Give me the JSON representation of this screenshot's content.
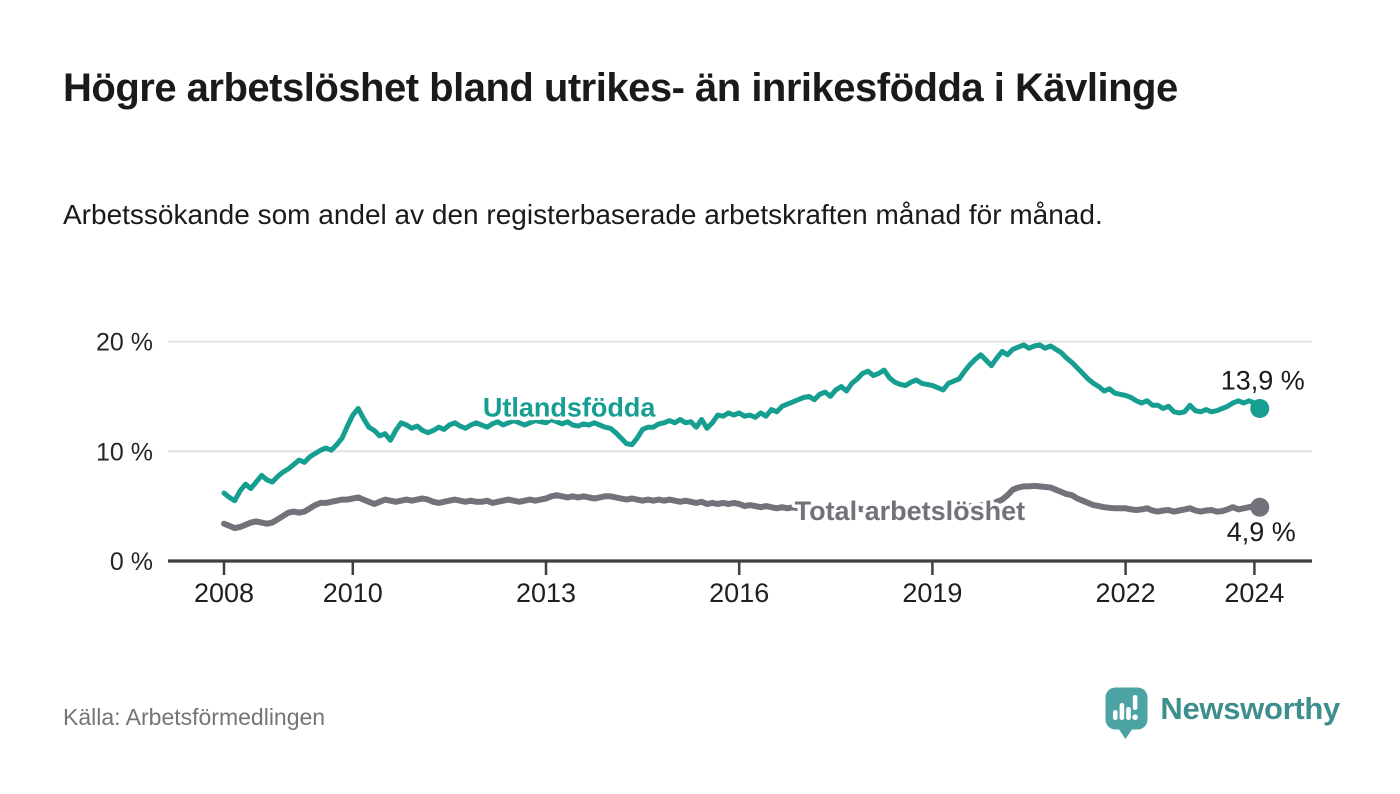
{
  "header": {
    "title": "Högre arbetslöshet bland utrikes- än inrikesfödda i Kävlinge",
    "subtitle": "Arbetssökande som andel av den registerbaserade arbetskraften månad för månad."
  },
  "colors": {
    "accent_teal": "#169e90",
    "accent_gray": "#75757c",
    "grid": "#e3e3e3",
    "axis": "#3f3f3f",
    "text": "#1a1a1a",
    "muted": "#757575",
    "brand": "#3e8e8e",
    "brand_icon": "#4ba3a3"
  },
  "chart_data": {
    "type": "line",
    "title": "",
    "xlabel": "",
    "ylabel": "",
    "x_range": {
      "start": "2008-01",
      "end": "2024-02",
      "step": "month"
    },
    "ylim": [
      0,
      21
    ],
    "grid": "horizontal",
    "y_ticks": [
      {
        "value": 0,
        "label": "0 %"
      },
      {
        "value": 10,
        "label": "10 %"
      },
      {
        "value": 20,
        "label": "20 %"
      }
    ],
    "x_ticks": [
      {
        "value": 2008,
        "label": "2008"
      },
      {
        "value": 2010,
        "label": "2010"
      },
      {
        "value": 2013,
        "label": "2013"
      },
      {
        "value": 2016,
        "label": "2016"
      },
      {
        "value": 2019,
        "label": "2019"
      },
      {
        "value": 2022,
        "label": "2022"
      },
      {
        "value": 2024,
        "label": "2024"
      }
    ],
    "series": [
      {
        "name": "Utlandsfödda",
        "color": "#169e90",
        "end_label": "13,9 %",
        "label": {
          "text": "Utlandsfödda",
          "x": 2013.36,
          "y": 14.0
        },
        "values": [
          6.2,
          5.8,
          5.5,
          6.4,
          7.0,
          6.6,
          7.2,
          7.8,
          7.4,
          7.2,
          7.7,
          8.1,
          8.4,
          8.8,
          9.2,
          9.0,
          9.5,
          9.8,
          10.1,
          10.3,
          10.1,
          10.6,
          11.2,
          12.3,
          13.3,
          13.9,
          13.0,
          12.2,
          11.9,
          11.4,
          11.6,
          11.0,
          11.9,
          12.6,
          12.4,
          12.1,
          12.3,
          11.9,
          11.7,
          11.9,
          12.2,
          12.0,
          12.4,
          12.6,
          12.3,
          12.1,
          12.4,
          12.6,
          12.4,
          12.2,
          12.5,
          12.7,
          12.4,
          12.6,
          12.8,
          12.6,
          12.4,
          12.6,
          12.8,
          12.7,
          12.6,
          12.9,
          12.7,
          12.5,
          12.7,
          12.4,
          12.3,
          12.5,
          12.4,
          12.6,
          12.4,
          12.2,
          12.1,
          11.7,
          11.2,
          10.7,
          10.6,
          11.2,
          12.0,
          12.2,
          12.2,
          12.5,
          12.6,
          12.8,
          12.6,
          12.9,
          12.6,
          12.7,
          12.2,
          12.9,
          12.1,
          12.6,
          13.3,
          13.2,
          13.5,
          13.3,
          13.5,
          13.2,
          13.3,
          13.1,
          13.5,
          13.2,
          13.8,
          13.6,
          14.1,
          14.3,
          14.5,
          14.7,
          14.9,
          15.0,
          14.7,
          15.2,
          15.4,
          15.0,
          15.6,
          15.9,
          15.5,
          16.2,
          16.6,
          17.1,
          17.3,
          16.9,
          17.1,
          17.4,
          16.7,
          16.3,
          16.1,
          16.0,
          16.3,
          16.5,
          16.2,
          16.1,
          16.0,
          15.8,
          15.6,
          16.2,
          16.4,
          16.6,
          17.3,
          17.9,
          18.4,
          18.8,
          18.3,
          17.8,
          18.5,
          19.1,
          18.8,
          19.3,
          19.5,
          19.7,
          19.4,
          19.6,
          19.7,
          19.4,
          19.6,
          19.3,
          19.0,
          18.5,
          18.1,
          17.6,
          17.1,
          16.6,
          16.2,
          15.9,
          15.5,
          15.7,
          15.3,
          15.2,
          15.1,
          14.9,
          14.6,
          14.4,
          14.6,
          14.2,
          14.2,
          13.9,
          14.1,
          13.6,
          13.5,
          13.6,
          14.2,
          13.7,
          13.6,
          13.8,
          13.6,
          13.7,
          13.9,
          14.1,
          14.4,
          14.6,
          14.4,
          14.6,
          14.4,
          13.9
        ]
      },
      {
        "name": "Total arbetslöshet",
        "color": "#72727a",
        "end_label": "4,9 %",
        "label": {
          "text": "Total arbetslöshet",
          "x": 2018.65,
          "y": 4.55
        },
        "values": [
          3.4,
          3.2,
          3.0,
          3.1,
          3.3,
          3.5,
          3.6,
          3.5,
          3.4,
          3.5,
          3.8,
          4.1,
          4.4,
          4.5,
          4.4,
          4.5,
          4.8,
          5.1,
          5.3,
          5.3,
          5.4,
          5.5,
          5.6,
          5.6,
          5.7,
          5.8,
          5.6,
          5.4,
          5.2,
          5.4,
          5.6,
          5.5,
          5.4,
          5.5,
          5.6,
          5.5,
          5.6,
          5.7,
          5.6,
          5.4,
          5.3,
          5.4,
          5.5,
          5.6,
          5.5,
          5.4,
          5.5,
          5.4,
          5.4,
          5.5,
          5.3,
          5.4,
          5.5,
          5.6,
          5.5,
          5.4,
          5.5,
          5.6,
          5.5,
          5.6,
          5.7,
          5.9,
          6.0,
          5.9,
          5.8,
          5.9,
          5.8,
          5.9,
          5.8,
          5.7,
          5.8,
          5.9,
          5.9,
          5.8,
          5.7,
          5.6,
          5.7,
          5.6,
          5.5,
          5.6,
          5.5,
          5.6,
          5.5,
          5.6,
          5.5,
          5.4,
          5.5,
          5.4,
          5.3,
          5.4,
          5.2,
          5.3,
          5.2,
          5.3,
          5.2,
          5.3,
          5.2,
          5.0,
          5.1,
          5.0,
          4.9,
          5.0,
          4.9,
          4.8,
          4.9,
          4.8,
          4.9,
          4.8,
          4.9,
          4.8,
          4.8,
          4.7,
          4.8,
          4.7,
          4.8,
          4.7,
          4.8,
          4.7,
          4.8,
          4.7,
          4.8,
          4.7,
          4.6,
          4.7,
          4.6,
          4.7,
          4.6,
          4.7,
          4.6,
          4.7,
          4.6,
          4.7,
          4.7,
          4.8,
          4.7,
          4.8,
          4.8,
          4.9,
          4.9,
          5.0,
          5.0,
          5.1,
          5.1,
          5.2,
          5.4,
          5.6,
          6.0,
          6.5,
          6.7,
          6.8,
          6.8,
          6.85,
          6.8,
          6.75,
          6.7,
          6.5,
          6.3,
          6.1,
          6.0,
          5.7,
          5.5,
          5.3,
          5.1,
          5.0,
          4.9,
          4.85,
          4.8,
          4.8,
          4.8,
          4.7,
          4.65,
          4.7,
          4.8,
          4.6,
          4.5,
          4.6,
          4.65,
          4.5,
          4.6,
          4.7,
          4.8,
          4.6,
          4.5,
          4.6,
          4.65,
          4.5,
          4.55,
          4.7,
          4.9,
          4.7,
          4.8,
          4.9,
          5.0,
          4.9
        ]
      }
    ]
  },
  "footer": {
    "source": "Källa: Arbetsförmedlingen",
    "brand": "Newsworthy"
  }
}
